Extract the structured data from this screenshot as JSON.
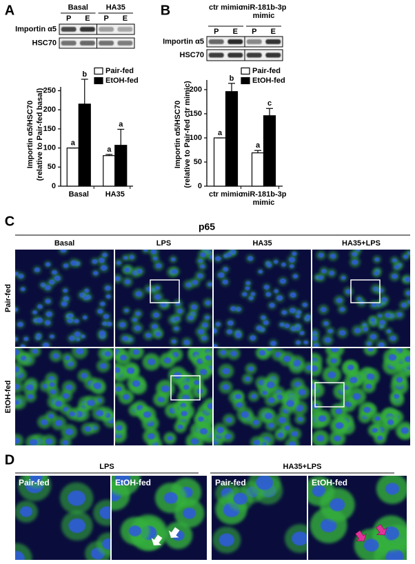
{
  "chart_data": [
    {
      "type": "bar",
      "ylabel": [
        "Importin α5/HSC70",
        "(relative to Pair-fed basal)"
      ],
      "categories": [
        "Basal",
        "HA35"
      ],
      "series": [
        {
          "name": "Pair-fed",
          "color": "#ffffff",
          "values": [
            100,
            80
          ],
          "errors": [
            0,
            3
          ],
          "letters": [
            "a",
            "a"
          ]
        },
        {
          "name": "EtOH-fed",
          "color": "#000000",
          "values": [
            215,
            107
          ],
          "errors": [
            65,
            42
          ],
          "letters": [
            "b",
            "a"
          ]
        }
      ],
      "ylim": [
        0,
        260
      ],
      "yticks": [
        0,
        50,
        100,
        150,
        200,
        250
      ],
      "legend": "upper right"
    },
    {
      "type": "bar",
      "ylabel": [
        "Importin α5/HSC70",
        "(relative to Pair-fed ctr mimic)"
      ],
      "categories": [
        "ctr mimic",
        "miR-181b-3p mimic"
      ],
      "series": [
        {
          "name": "Pair-fed",
          "color": "#ffffff",
          "values": [
            100,
            69
          ],
          "errors": [
            0,
            5
          ],
          "letters": [
            "a",
            "a"
          ]
        },
        {
          "name": "EtOH-fed",
          "color": "#000000",
          "values": [
            196,
            146
          ],
          "errors": [
            17,
            15
          ],
          "letters": [
            "b",
            "c"
          ]
        }
      ],
      "ylim": [
        0,
        220
      ],
      "yticks": [
        0,
        50,
        100,
        150,
        200
      ],
      "legend": "upper right"
    }
  ],
  "panels": [
    {
      "label": "A",
      "blot": {
        "groups": [
          "Basal",
          "HA35"
        ],
        "lanes": [
          "P",
          "E",
          "P",
          "E"
        ],
        "rows": [
          "Importin α5",
          "HSC70"
        ]
      }
    },
    {
      "label": "B",
      "blot": {
        "groups": [
          "ctr mimic",
          "miR-181b-3p mimic"
        ],
        "lanes": [
          "P",
          "E",
          "P",
          "E"
        ],
        "rows": [
          "Importin α5",
          "HSC70"
        ]
      }
    },
    {
      "label": "C",
      "title": "p65",
      "columns": [
        "Basal",
        "LPS",
        "HA35",
        "HA35+LPS"
      ],
      "rows": [
        "Pair-fed",
        "EtOH-fed"
      ]
    },
    {
      "label": "D",
      "groups": [
        "LPS",
        "HA35+LPS"
      ],
      "image_labels": [
        "Pair-fed",
        "EtOH-fed",
        "Pair-fed",
        "EtOH-fed"
      ]
    }
  ]
}
